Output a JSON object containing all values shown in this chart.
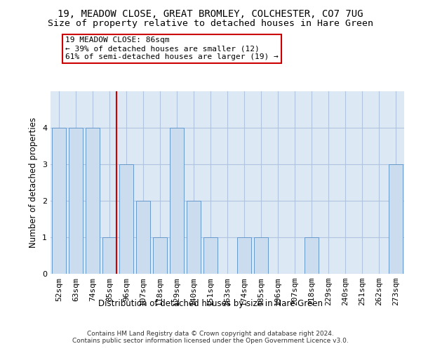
{
  "title": "19, MEADOW CLOSE, GREAT BROMLEY, COLCHESTER, CO7 7UG",
  "subtitle": "Size of property relative to detached houses in Hare Green",
  "xlabel": "Distribution of detached houses by size in Hare Green",
  "ylabel": "Number of detached properties",
  "categories": [
    "52sqm",
    "63sqm",
    "74sqm",
    "85sqm",
    "96sqm",
    "107sqm",
    "118sqm",
    "129sqm",
    "140sqm",
    "151sqm",
    "163sqm",
    "174sqm",
    "185sqm",
    "196sqm",
    "207sqm",
    "218sqm",
    "229sqm",
    "240sqm",
    "251sqm",
    "262sqm",
    "273sqm"
  ],
  "values": [
    4,
    4,
    4,
    1,
    3,
    2,
    1,
    4,
    2,
    1,
    0,
    1,
    1,
    0,
    0,
    1,
    0,
    0,
    0,
    0,
    3
  ],
  "bar_color": "#ccdcef",
  "bar_edgecolor": "#6699cc",
  "redline_index": 3,
  "annotation_text": "19 MEADOW CLOSE: 86sqm\n← 39% of detached houses are smaller (12)\n61% of semi-detached houses are larger (19) →",
  "annotation_box_color": "#ffffff",
  "annotation_box_edgecolor": "#cc0000",
  "ylim": [
    0,
    5
  ],
  "yticks": [
    0,
    1,
    2,
    3,
    4
  ],
  "background_color": "#ffffff",
  "plot_bg_color": "#dde8f5",
  "grid_color": "#b0c4de",
  "footer": "Contains HM Land Registry data © Crown copyright and database right 2024.\nContains public sector information licensed under the Open Government Licence v3.0.",
  "title_fontsize": 10,
  "subtitle_fontsize": 9.5,
  "xlabel_fontsize": 8.5,
  "ylabel_fontsize": 8.5,
  "tick_fontsize": 8,
  "annotation_fontsize": 8,
  "footer_fontsize": 6.5
}
